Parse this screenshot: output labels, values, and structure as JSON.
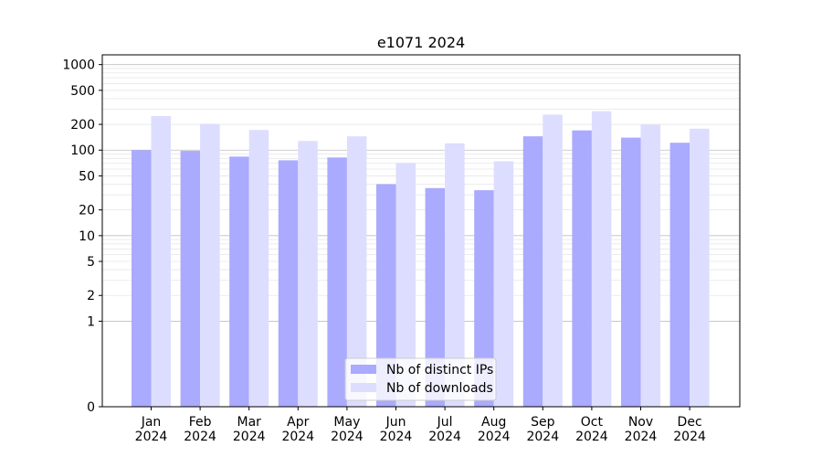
{
  "chart_data": {
    "type": "bar",
    "title": "e1071 2024",
    "categories": [
      [
        "Jan",
        "2024"
      ],
      [
        "Feb",
        "2024"
      ],
      [
        "Mar",
        "2024"
      ],
      [
        "Apr",
        "2024"
      ],
      [
        "May",
        "2024"
      ],
      [
        "Jun",
        "2024"
      ],
      [
        "Jul",
        "2024"
      ],
      [
        "Aug",
        "2024"
      ],
      [
        "Sep",
        "2024"
      ],
      [
        "Oct",
        "2024"
      ],
      [
        "Nov",
        "2024"
      ],
      [
        "Dec",
        "2024"
      ]
    ],
    "series": [
      {
        "name": "Nb of distinct IPs",
        "color": "#aaaaff",
        "values": [
          100,
          98,
          84,
          76,
          82,
          40,
          36,
          34,
          145,
          170,
          140,
          122
        ]
      },
      {
        "name": "Nb of downloads",
        "color": "#ddddff",
        "values": [
          250,
          203,
          172,
          128,
          145,
          71,
          120,
          74,
          260,
          285,
          198,
          178
        ]
      }
    ],
    "yscale": "symlog",
    "ylim": [
      0,
      1300
    ],
    "yticks": [
      0,
      1,
      2,
      5,
      10,
      20,
      50,
      100,
      200,
      500,
      1000
    ],
    "grid": "y",
    "legend": "bottom-center"
  }
}
